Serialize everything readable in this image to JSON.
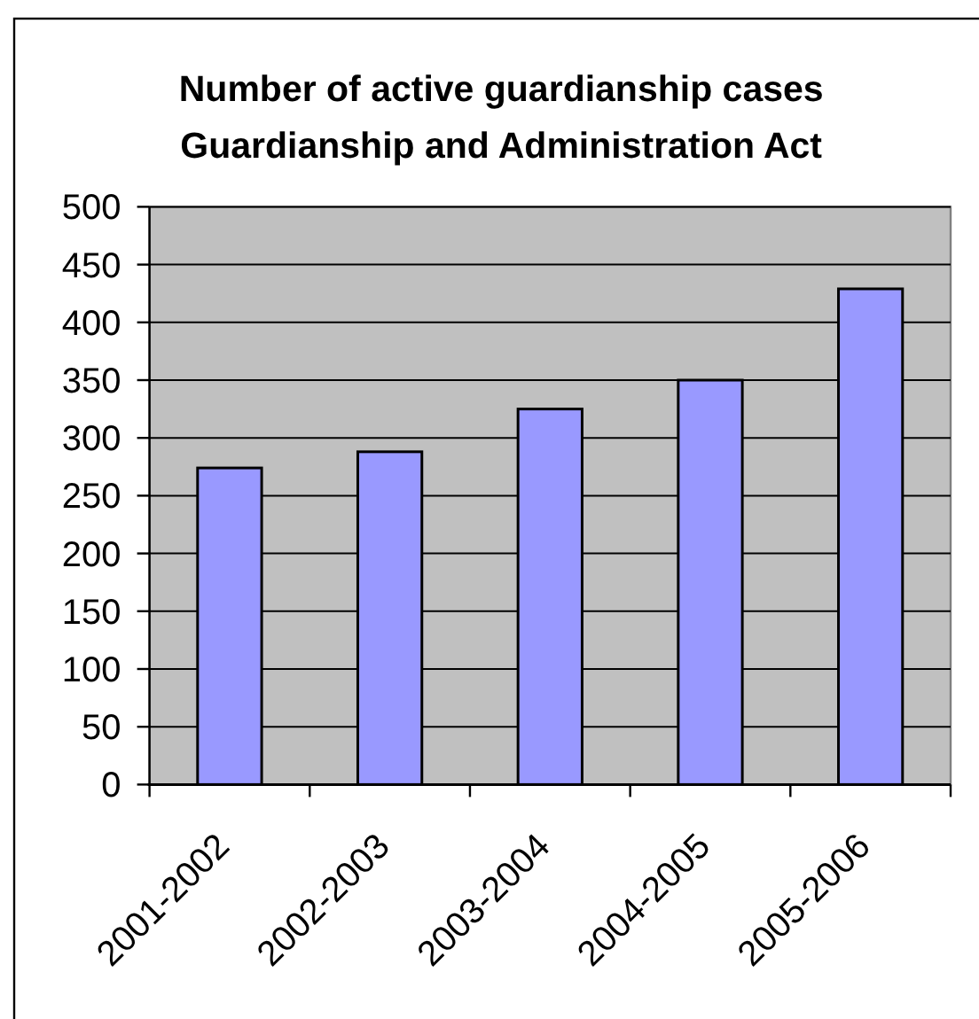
{
  "chart_data": {
    "type": "bar",
    "title": "Number of active guardianship cases\nGuardianship and Administration Act",
    "categories": [
      "2001-2002",
      "2002-2003",
      "2003-2004",
      "2004-2005",
      "2005-2006"
    ],
    "values": [
      274,
      288,
      325,
      350,
      429
    ],
    "color": "#9999ff",
    "ylim": [
      0,
      500
    ],
    "yticks": [
      0,
      50,
      100,
      150,
      200,
      250,
      300,
      350,
      400,
      450,
      500
    ],
    "grid": "y"
  }
}
